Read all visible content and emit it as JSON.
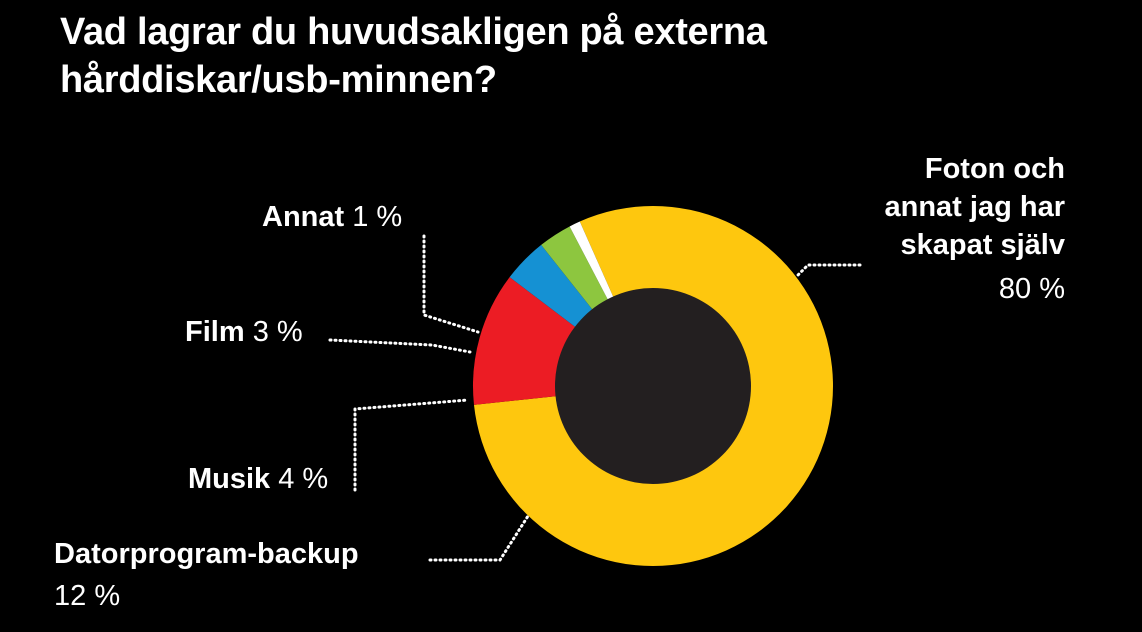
{
  "title_lines": [
    "Vad lagrar du huvudsakligen på externa",
    "hårddiskar/usb-minnen?"
  ],
  "colors": {
    "background": "#000000",
    "hole": "#231f20",
    "leader": "#ffffff"
  },
  "chart_data": {
    "type": "pie",
    "title": "Vad lagrar du huvudsakligen på externa hårddiskar/usb-minnen?",
    "unit": "%",
    "donut": true,
    "slices": [
      {
        "label_lines": [
          "Foton och",
          "annat jag har",
          "skapat själv"
        ],
        "value": 80,
        "value_text": "80 %",
        "color": "#fec70e"
      },
      {
        "label_lines": [
          "Datorprogram-backup"
        ],
        "value": 12,
        "value_text": "12 %",
        "color": "#ec1c24"
      },
      {
        "label_lines": [
          "Musik"
        ],
        "value": 4,
        "value_text": "4 %",
        "color": "#1591d3"
      },
      {
        "label_lines": [
          "Film"
        ],
        "value": 3,
        "value_text": "3 %",
        "color": "#8dc63f"
      },
      {
        "label_lines": [
          "Annat"
        ],
        "value": 1,
        "value_text": "1 %",
        "color": "#ffffff"
      }
    ]
  }
}
